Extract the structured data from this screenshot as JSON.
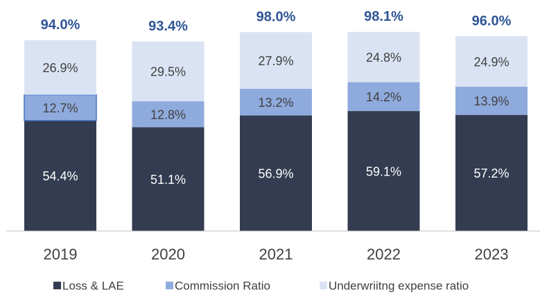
{
  "chart_data": {
    "type": "bar",
    "stacked": true,
    "categories": [
      "2019",
      "2020",
      "2021",
      "2022",
      "2023"
    ],
    "series": [
      {
        "name": "Loss & LAE",
        "color": "#333c50",
        "values": [
          54.4,
          51.1,
          56.9,
          59.1,
          57.2
        ],
        "value_labels": [
          "54.4%",
          "51.1%",
          "56.9%",
          "59.1%",
          "57.2%"
        ]
      },
      {
        "name": "Commission Ratio",
        "color": "#8faadc",
        "values": [
          12.7,
          12.8,
          13.2,
          14.2,
          13.9
        ],
        "value_labels": [
          "12.7%",
          "12.8%",
          "13.2%",
          "14.2%",
          "13.9%"
        ]
      },
      {
        "name": "Underwriitng expense ratio",
        "color": "#dae3f3",
        "values": [
          26.9,
          29.5,
          27.9,
          24.8,
          24.9
        ],
        "value_labels": [
          "26.9%",
          "29.5%",
          "27.9%",
          "24.8%",
          "24.9%"
        ]
      }
    ],
    "totals": [
      94.0,
      93.4,
      98.0,
      98.1,
      96.0
    ],
    "total_labels": [
      "94.0%",
      "93.4%",
      "98.0%",
      "98.1%",
      "96.0%"
    ],
    "ylim": [
      0,
      100
    ],
    "legend": "bottom"
  }
}
